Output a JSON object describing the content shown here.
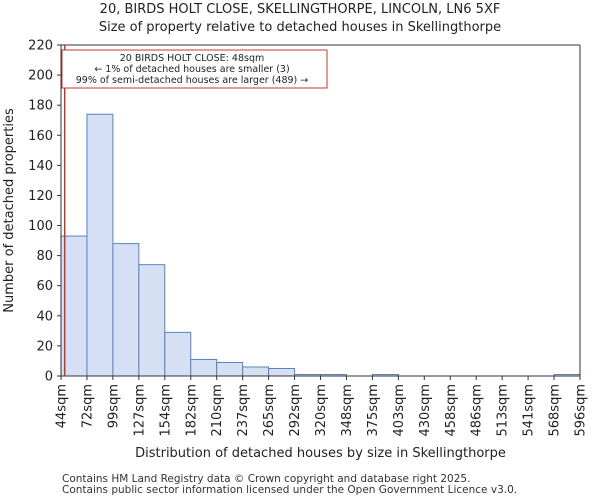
{
  "chart_data": {
    "type": "bar",
    "title_line1": "20, BIRDS HOLT CLOSE, SKELLINGTHORPE, LINCOLN, LN6 5XF",
    "title_line2": "Size of property relative to detached houses in Skellingthorpe",
    "xlabel": "Distribution of detached houses by size in Skellingthorpe",
    "ylabel": "Number of detached properties",
    "ylim": [
      0,
      220
    ],
    "yticks": [
      0,
      20,
      40,
      60,
      80,
      100,
      120,
      140,
      160,
      180,
      200,
      220
    ],
    "bin_edges": [
      "44sqm",
      "72sqm",
      "99sqm",
      "127sqm",
      "154sqm",
      "182sqm",
      "210sqm",
      "237sqm",
      "265sqm",
      "292sqm",
      "320sqm",
      "348sqm",
      "375sqm",
      "403sqm",
      "430sqm",
      "458sqm",
      "486sqm",
      "513sqm",
      "541sqm",
      "568sqm",
      "596sqm"
    ],
    "values": [
      93,
      174,
      88,
      74,
      29,
      11,
      9,
      6,
      5,
      1,
      1,
      0,
      1,
      0,
      0,
      0,
      0,
      0,
      0,
      1
    ],
    "bar_color": "#d6e0f5",
    "bar_edge_color": "#5a7fc0",
    "marker": {
      "value_sqm": 48,
      "color": "#c0392b"
    },
    "annotation": {
      "line1": "20 BIRDS HOLT CLOSE: 48sqm",
      "line2": "← 1% of detached houses are smaller (3)",
      "line3": "99% of semi-detached houses are larger (489) →"
    }
  },
  "footer": {
    "line1": "Contains HM Land Registry data © Crown copyright and database right 2025.",
    "line2": "Contains public sector information licensed under the Open Government Licence v3.0."
  }
}
